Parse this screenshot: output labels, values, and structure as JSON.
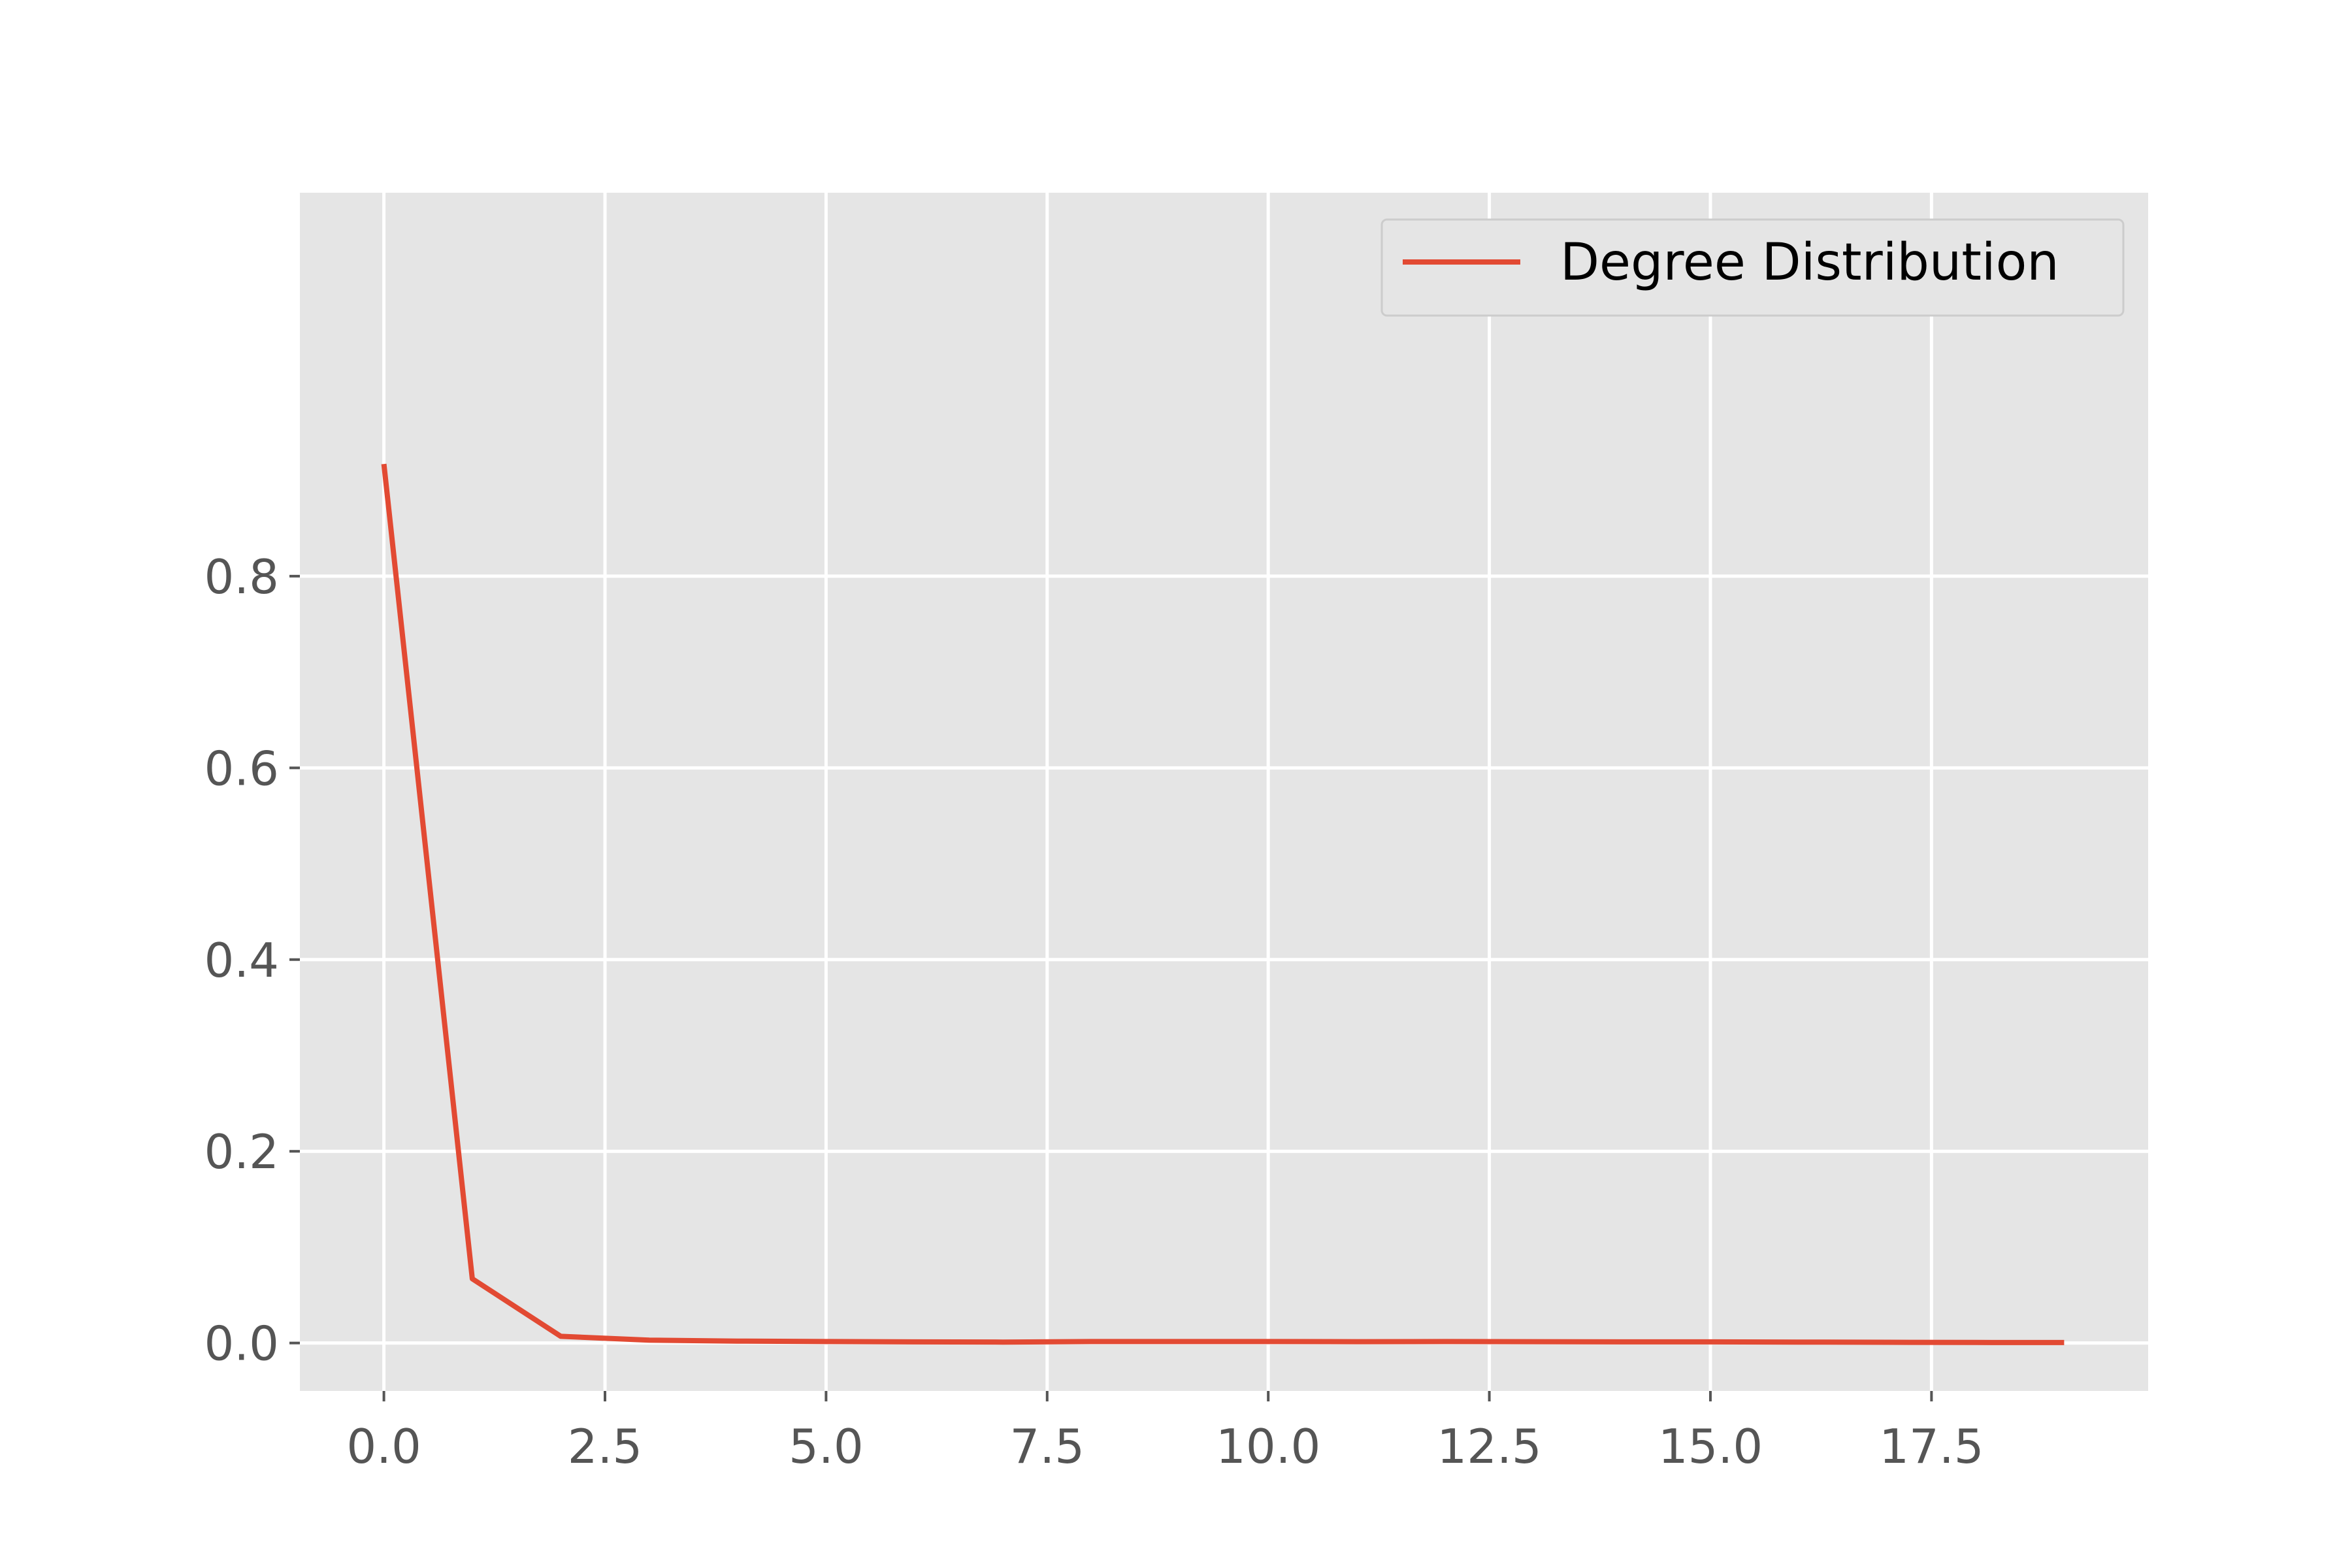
{
  "chart_data": {
    "type": "line",
    "title": "",
    "xlabel": "",
    "ylabel": "",
    "xlim": [
      -0.95,
      19.95
    ],
    "ylim": [
      -0.05,
      1.2
    ],
    "grid": true,
    "legend_position": "top-right",
    "x_ticks": [
      "0.0",
      "2.5",
      "5.0",
      "7.5",
      "10.0",
      "12.5",
      "15.0",
      "17.5"
    ],
    "y_ticks": [
      "0.0",
      "0.2",
      "0.4",
      "0.6",
      "0.8"
    ],
    "series": [
      {
        "name": "Degree Distribution",
        "color": "#E24A33",
        "x": [
          0,
          1,
          2,
          3,
          4,
          5,
          6,
          7,
          8,
          9,
          10,
          11,
          12,
          13,
          14,
          15,
          16,
          17,
          18,
          19
        ],
        "y": [
          0.917,
          0.067,
          0.007,
          0.003,
          0.002,
          0.0015,
          0.0012,
          0.001,
          0.0015,
          0.0015,
          0.0015,
          0.0014,
          0.0015,
          0.0014,
          0.0012,
          0.0012,
          0.001,
          0.0008,
          0.0006,
          0.0005
        ]
      }
    ]
  },
  "colors": {
    "plot_background": "#E5E5E5",
    "grid": "#FFFFFF",
    "tick": "#555555",
    "line": "#E24A33"
  }
}
